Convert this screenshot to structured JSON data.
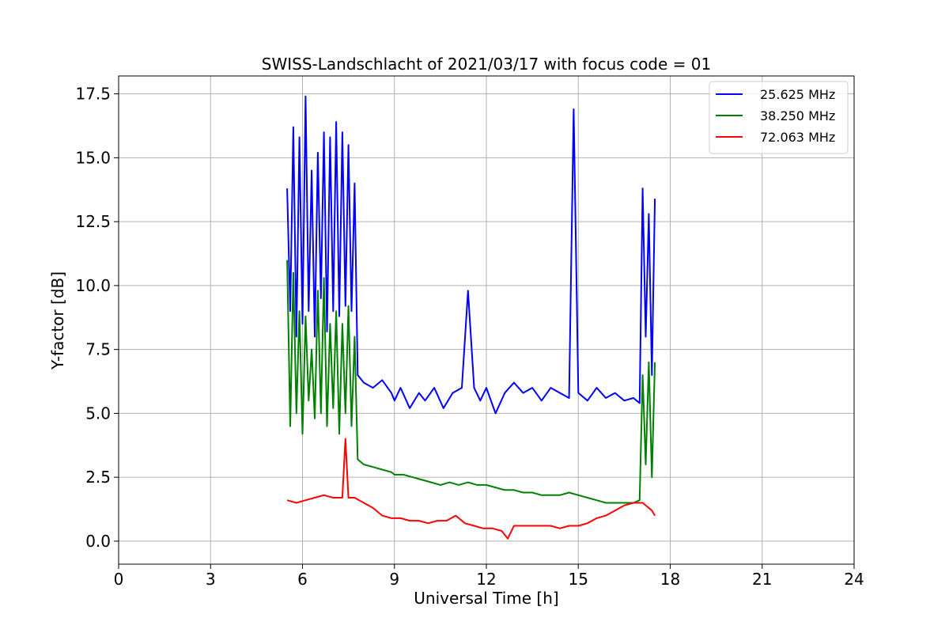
{
  "chart_data": {
    "type": "line",
    "title": "SWISS-Landschlacht of 2021/03/17 with focus code = 01",
    "xlabel": "Universal Time [h]",
    "ylabel": "Y-factor [dB]",
    "xlim": [
      0,
      24
    ],
    "ylim": [
      -0.9,
      18.2
    ],
    "xticks": [
      "0",
      "3",
      "6",
      "9",
      "12",
      "15",
      "18",
      "21",
      "24"
    ],
    "yticks": [
      "0.0",
      "2.5",
      "5.0",
      "7.5",
      "10.0",
      "12.5",
      "15.0",
      "17.5"
    ],
    "grid": true,
    "legend_position": "top-right",
    "series": [
      {
        "name": "25.625 MHz",
        "color": "#0000ff",
        "x": [
          5.5,
          5.6,
          5.7,
          5.8,
          5.9,
          6.0,
          6.1,
          6.2,
          6.3,
          6.4,
          6.5,
          6.6,
          6.7,
          6.8,
          6.9,
          7.0,
          7.1,
          7.2,
          7.3,
          7.4,
          7.5,
          7.6,
          7.7,
          7.8,
          8.0,
          8.3,
          8.6,
          8.9,
          9.0,
          9.2,
          9.5,
          9.8,
          10.0,
          10.3,
          10.6,
          10.9,
          11.2,
          11.4,
          11.6,
          11.8,
          12.0,
          12.3,
          12.6,
          12.9,
          13.2,
          13.5,
          13.8,
          14.1,
          14.4,
          14.7,
          14.85,
          15.0,
          15.3,
          15.6,
          15.9,
          16.2,
          16.5,
          16.8,
          17.0,
          17.1,
          17.2,
          17.3,
          17.4,
          17.5
        ],
        "values": [
          13.8,
          9.0,
          16.2,
          8.0,
          15.8,
          8.5,
          17.4,
          9.0,
          14.5,
          8.0,
          15.2,
          9.5,
          16.0,
          8.2,
          15.8,
          9.0,
          16.4,
          8.8,
          16.0,
          9.2,
          15.5,
          9.0,
          14.0,
          6.5,
          6.2,
          6.0,
          6.3,
          5.8,
          5.5,
          6.0,
          5.2,
          5.8,
          5.5,
          6.0,
          5.2,
          5.8,
          6.0,
          9.8,
          6.0,
          5.5,
          6.0,
          5.0,
          5.8,
          6.2,
          5.8,
          6.0,
          5.5,
          6.0,
          5.8,
          5.6,
          16.9,
          5.8,
          5.5,
          6.0,
          5.6,
          5.8,
          5.5,
          5.6,
          5.4,
          13.8,
          8.0,
          12.8,
          6.5,
          13.4
        ]
      },
      {
        "name": "38.250 MHz",
        "color": "#008000",
        "x": [
          5.5,
          5.6,
          5.7,
          5.8,
          5.9,
          6.0,
          6.1,
          6.2,
          6.3,
          6.4,
          6.5,
          6.6,
          6.7,
          6.8,
          6.9,
          7.0,
          7.1,
          7.2,
          7.3,
          7.4,
          7.5,
          7.6,
          7.7,
          7.8,
          8.0,
          8.3,
          8.6,
          8.9,
          9.0,
          9.3,
          9.6,
          9.9,
          10.2,
          10.5,
          10.8,
          11.1,
          11.4,
          11.7,
          12.0,
          12.3,
          12.6,
          12.9,
          13.2,
          13.5,
          13.8,
          14.1,
          14.4,
          14.7,
          15.0,
          15.3,
          15.6,
          15.9,
          16.2,
          16.5,
          16.8,
          17.0,
          17.1,
          17.2,
          17.3,
          17.4,
          17.5
        ],
        "values": [
          11.0,
          4.5,
          10.5,
          5.0,
          9.0,
          4.2,
          8.8,
          5.5,
          7.5,
          4.8,
          9.8,
          5.0,
          10.3,
          4.5,
          8.5,
          5.2,
          9.0,
          4.2,
          8.5,
          5.0,
          9.2,
          4.5,
          8.0,
          3.2,
          3.0,
          2.9,
          2.8,
          2.7,
          2.6,
          2.6,
          2.5,
          2.4,
          2.3,
          2.2,
          2.3,
          2.2,
          2.3,
          2.2,
          2.2,
          2.1,
          2.0,
          2.0,
          1.9,
          1.9,
          1.8,
          1.8,
          1.8,
          1.9,
          1.8,
          1.7,
          1.6,
          1.5,
          1.5,
          1.5,
          1.5,
          1.6,
          6.5,
          3.0,
          7.0,
          2.5,
          7.0
        ]
      },
      {
        "name": "72.063 MHz",
        "color": "#ff0000",
        "x": [
          5.5,
          5.8,
          6.1,
          6.4,
          6.7,
          7.0,
          7.3,
          7.4,
          7.5,
          7.7,
          8.0,
          8.3,
          8.6,
          8.9,
          9.2,
          9.5,
          9.8,
          10.1,
          10.4,
          10.7,
          11.0,
          11.3,
          11.6,
          11.9,
          12.2,
          12.5,
          12.7,
          12.9,
          13.2,
          13.5,
          13.8,
          14.1,
          14.4,
          14.7,
          15.0,
          15.3,
          15.6,
          15.9,
          16.2,
          16.5,
          16.8,
          17.1,
          17.4,
          17.5
        ],
        "values": [
          1.6,
          1.5,
          1.6,
          1.7,
          1.8,
          1.7,
          1.7,
          4.0,
          1.7,
          1.7,
          1.5,
          1.3,
          1.0,
          0.9,
          0.9,
          0.8,
          0.8,
          0.7,
          0.8,
          0.8,
          1.0,
          0.7,
          0.6,
          0.5,
          0.5,
          0.4,
          0.1,
          0.6,
          0.6,
          0.6,
          0.6,
          0.6,
          0.5,
          0.6,
          0.6,
          0.7,
          0.9,
          1.0,
          1.2,
          1.4,
          1.5,
          1.5,
          1.2,
          1.0
        ]
      }
    ]
  }
}
